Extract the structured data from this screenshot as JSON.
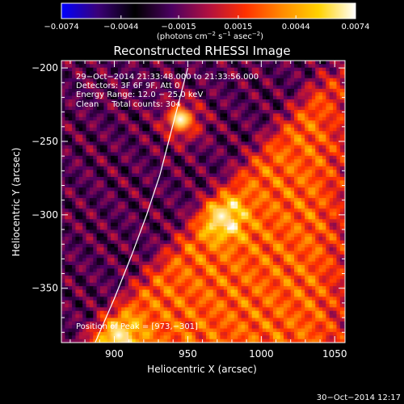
{
  "chart_data": {
    "type": "heatmap",
    "title": "Reconstructed RHESSI Image",
    "xlabel": "Heliocentric X (arcsec)",
    "ylabel": "Heliocentric Y (arcsec)",
    "xlim": [
      864,
      1057
    ],
    "ylim": [
      -387,
      -195
    ],
    "x_ticks": [
      900,
      950,
      1000,
      1050
    ],
    "x_tick_labels": [
      "900",
      "950",
      "1000",
      "1050"
    ],
    "y_ticks": [
      -200,
      -250,
      -300,
      -350
    ],
    "y_tick_labels": [
      "−200",
      "−250",
      "−300",
      "−350"
    ],
    "colorbar": {
      "ticks": [
        -0.0074,
        -0.0044,
        -0.0015,
        0.0015,
        0.0044,
        0.0074
      ],
      "tick_labels": [
        "−0.0074",
        "−0.0044",
        "−0.0015",
        "0.0015",
        "0.0044",
        "0.0074"
      ],
      "unit_prefix": "(photons cm",
      "unit_exp1": "−2",
      "unit_mid": " s",
      "unit_exp2": "−1",
      "unit_mid2": " asec",
      "unit_exp3": "−2",
      "unit_suffix": ")",
      "colors": [
        "#0000ff",
        "#3a0077",
        "#000000",
        "#4b0060",
        "#b01040",
        "#ff3000",
        "#ff8a00",
        "#ffd200",
        "#ffffff"
      ]
    },
    "annotations": [
      "29−Oct−2014 21:33:48.000 to 21:33:56.000",
      "Detectors: 3F 6F 9F, Att 0",
      "Energy Range: 12.0 − 25.0 keV",
      "Clean     Total counts: 304"
    ],
    "peak_label": "Position of Peak = [973,−301]",
    "peak": [
      973,
      -301
    ],
    "secondary_sources": [
      [
        945,
        -235
      ],
      [
        903,
        -382
      ]
    ],
    "limb": [
      [
        887,
        -387
      ],
      [
        900,
        -357
      ],
      [
        912,
        -327
      ],
      [
        922,
        -300
      ],
      [
        931,
        -273
      ],
      [
        938,
        -246
      ],
      [
        945,
        -219
      ],
      [
        950,
        -200
      ]
    ]
  },
  "footer": {
    "timestamp": "30−Oct−2014 12:17"
  }
}
